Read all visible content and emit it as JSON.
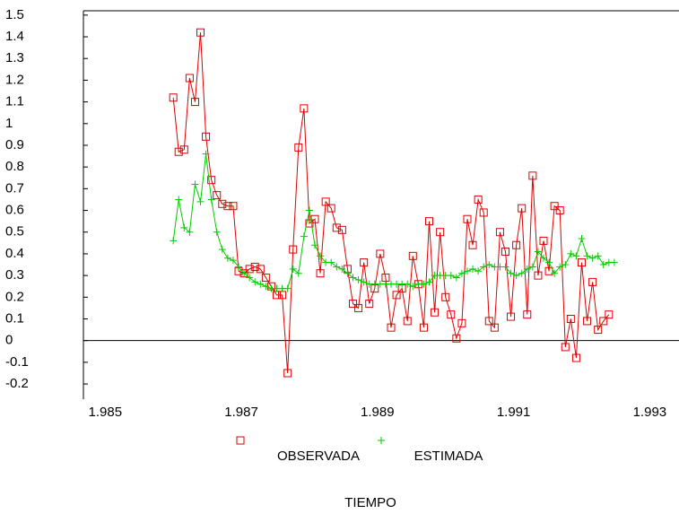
{
  "chart_data": {
    "type": "line",
    "x_label": "TIEMPO",
    "x": [
      1.986,
      1.98608,
      1.98616,
      1.98624,
      1.98632,
      1.9864,
      1.98648,
      1.98656,
      1.98664,
      1.98672,
      1.9868,
      1.98688,
      1.98696,
      1.98704,
      1.98712,
      1.9872,
      1.98728,
      1.98736,
      1.98744,
      1.98752,
      1.9876,
      1.98768,
      1.98776,
      1.98784,
      1.98792,
      1.988,
      1.98808,
      1.98816,
      1.98824,
      1.98832,
      1.9884,
      1.98848,
      1.98856,
      1.98864,
      1.98872,
      1.9888,
      1.98888,
      1.98896,
      1.98904,
      1.98912,
      1.9892,
      1.98928,
      1.98936,
      1.98944,
      1.98952,
      1.9896,
      1.98968,
      1.98976,
      1.98984,
      1.98992,
      1.99,
      1.99008,
      1.99016,
      1.99024,
      1.99032,
      1.9904,
      1.99048,
      1.99056,
      1.99064,
      1.99072,
      1.9908,
      1.99088,
      1.99096,
      1.99104,
      1.99112,
      1.9912,
      1.99128,
      1.99136,
      1.99144,
      1.99152,
      1.9916,
      1.99168,
      1.99176,
      1.99184,
      1.99192,
      1.992,
      1.99208,
      1.99216,
      1.99224,
      1.99232,
      1.9924,
      1.99248
    ],
    "series": [
      {
        "name": "OBSERVADA",
        "color": "#e00000",
        "marker": "square",
        "values": [
          1.12,
          0.87,
          0.88,
          1.21,
          1.1,
          1.42,
          0.94,
          0.74,
          0.67,
          0.63,
          0.62,
          0.62,
          0.32,
          0.31,
          0.33,
          0.34,
          0.33,
          0.29,
          0.25,
          0.21,
          0.21,
          -0.15,
          0.42,
          0.89,
          1.07,
          0.54,
          0.56,
          0.31,
          0.64,
          0.61,
          0.52,
          0.51,
          0.33,
          0.17,
          0.15,
          0.36,
          0.17,
          0.24,
          0.4,
          0.29,
          0.06,
          0.21,
          0.24,
          0.09,
          0.39,
          0.26,
          0.06,
          0.55,
          0.13,
          0.5,
          0.2,
          0.12,
          0.01,
          0.08,
          0.56,
          0.44,
          0.65,
          0.59,
          0.09,
          0.06,
          0.5,
          0.41,
          0.11,
          0.44,
          0.61,
          0.12,
          0.76,
          0.3,
          0.46,
          0.32,
          0.62,
          0.6,
          -0.03,
          0.1,
          -0.08,
          0.36,
          0.09,
          0.27,
          0.05,
          0.09,
          0.12,
          null
        ]
      },
      {
        "name": "ESTIMADA",
        "color": "#00cc00",
        "marker": "plus",
        "values": [
          0.46,
          0.65,
          0.52,
          0.5,
          0.72,
          0.64,
          0.86,
          0.65,
          0.5,
          0.42,
          0.38,
          0.37,
          0.34,
          0.31,
          0.29,
          0.27,
          0.26,
          0.25,
          0.24,
          0.24,
          0.24,
          0.24,
          0.33,
          0.31,
          0.48,
          0.6,
          0.44,
          0.39,
          0.36,
          0.36,
          0.34,
          0.33,
          0.31,
          0.29,
          0.28,
          0.27,
          0.26,
          0.26,
          0.26,
          0.26,
          0.26,
          0.26,
          0.26,
          0.26,
          0.25,
          0.26,
          0.26,
          0.27,
          0.3,
          0.3,
          0.3,
          0.3,
          0.29,
          0.31,
          0.32,
          0.33,
          0.32,
          0.34,
          0.35,
          0.34,
          0.34,
          0.34,
          0.31,
          0.3,
          0.31,
          0.33,
          0.34,
          0.41,
          0.38,
          0.36,
          0.31,
          0.34,
          0.35,
          0.4,
          0.39,
          0.47,
          0.39,
          0.38,
          0.39,
          0.35,
          0.36,
          0.36
        ]
      }
    ],
    "xlim": [
      1.98468,
      1.99343
    ],
    "xticks": [
      1.985,
      1.987,
      1.989,
      1.991,
      1.993
    ],
    "ylim": [
      -0.27,
      1.52
    ],
    "yticks": [
      1.5,
      1.4,
      1.3,
      1.2,
      1.1,
      1,
      0.9,
      0.8,
      0.7,
      0.6,
      0.5,
      0.4,
      0.3,
      0.2,
      0.1,
      0,
      -0.1,
      -0.2
    ],
    "zero_line": true
  }
}
